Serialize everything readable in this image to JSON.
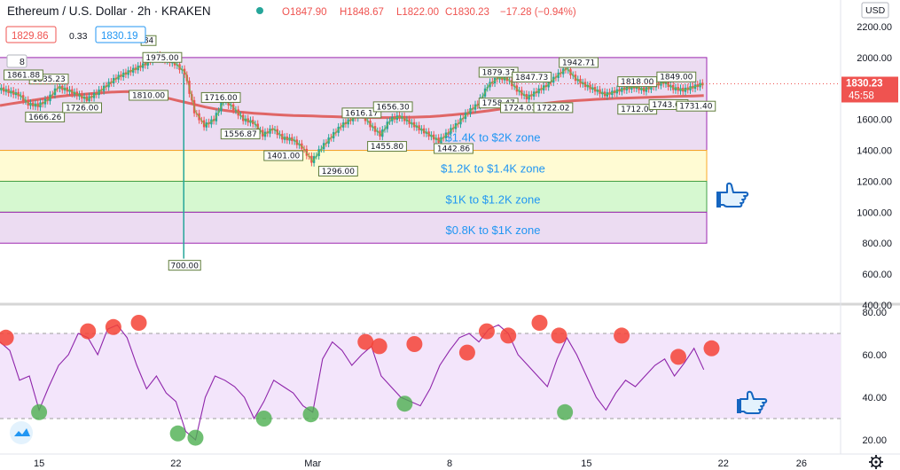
{
  "header": {
    "symbol": "Ethereum / U.S. Dollar · 2h · KRAKEN",
    "open": "O1847.90",
    "high": "H1848.67",
    "low": "L1822.00",
    "close": "C1830.23",
    "change": "−17.28 (−0.94%)",
    "bid": "1829.86",
    "spread": "0.33",
    "ask": "1830.19",
    "currency": "USD",
    "last_price": "1830.23",
    "countdown": "45:58",
    "collapsed_count": "8"
  },
  "colors": {
    "up": "#26a69a",
    "down": "#ef5350",
    "ma": "#e06666",
    "zone_purple": "#e6d0ee",
    "zone_yellow": "#fff9c4",
    "zone_green": "#c8f5c0",
    "rsi_line": "#8e24aa",
    "rsi_band": "#f3e5fb",
    "zone_text": "#2196f3",
    "hand": "#1565c0"
  },
  "icons": {
    "hand_top": "pointing-hand-icon",
    "hand_bottom": "pointing-hand-icon",
    "settings": "gear-icon",
    "logo": "cloud-logo-icon"
  },
  "chart_data": [
    {
      "type": "line",
      "name": "price",
      "y_ticks": [
        "2200.00",
        "2000.00",
        "1800.00",
        "1600.00",
        "1400.00",
        "1200.00",
        "1000.00",
        "800.00",
        "600.00",
        "400.00"
      ],
      "ylim": [
        400,
        2240
      ],
      "x_ticks": [
        "15",
        "22",
        "Mar",
        "8",
        "15",
        "22",
        "26"
      ],
      "x_tick_pos": [
        15,
        22,
        29,
        36,
        43,
        50,
        54
      ],
      "xlim": [
        13,
        56
      ],
      "x_series": [
        13,
        13.5,
        14,
        14.5,
        15,
        15.5,
        16,
        16.5,
        17,
        17.5,
        18,
        18.5,
        19,
        19.5,
        20,
        20.5,
        21,
        21.5,
        22,
        22.5,
        23,
        23.5,
        24,
        24.5,
        25,
        25.5,
        26,
        26.5,
        27,
        27.5,
        28,
        28.5,
        29,
        29.5,
        30,
        30.5,
        31,
        31.5,
        32,
        32.5,
        33,
        33.5,
        34,
        34.5,
        35,
        35.5,
        36,
        36.5,
        37,
        37.5,
        38,
        38.5,
        39,
        39.5,
        40,
        40.5,
        41,
        41.5,
        42,
        42.5,
        43,
        43.5,
        44,
        44.5,
        45,
        45.5,
        46,
        46.5,
        47,
        47.5,
        48,
        48.5,
        49
      ],
      "price": [
        1800,
        1780,
        1760,
        1700,
        1690,
        1730,
        1810,
        1790,
        1760,
        1730,
        1770,
        1820,
        1870,
        1900,
        1930,
        1960,
        2010,
        1990,
        1960,
        1900,
        1650,
        1560,
        1600,
        1730,
        1670,
        1600,
        1580,
        1500,
        1540,
        1480,
        1470,
        1420,
        1330,
        1420,
        1490,
        1560,
        1600,
        1640,
        1560,
        1500,
        1600,
        1620,
        1580,
        1540,
        1500,
        1460,
        1520,
        1580,
        1650,
        1700,
        1820,
        1870,
        1860,
        1790,
        1740,
        1780,
        1820,
        1880,
        1930,
        1860,
        1820,
        1790,
        1760,
        1780,
        1800,
        1810,
        1790,
        1820,
        1840,
        1800,
        1790,
        1810,
        1830.23
      ],
      "ma_line": [
        1690,
        1700,
        1710,
        1720,
        1730,
        1740,
        1748,
        1755,
        1760,
        1765,
        1770,
        1775,
        1778,
        1780,
        1778,
        1770,
        1755,
        1740,
        1725,
        1710,
        1695,
        1680,
        1668,
        1658,
        1650,
        1645,
        1640,
        1636,
        1632,
        1628,
        1625,
        1624,
        1622,
        1620,
        1618,
        1616,
        1615,
        1614,
        1612,
        1612,
        1612,
        1613,
        1614,
        1616,
        1618,
        1622,
        1628,
        1634,
        1640,
        1648,
        1656,
        1665,
        1674,
        1682,
        1690,
        1698,
        1705,
        1712,
        1718,
        1722,
        1726,
        1730,
        1733,
        1736,
        1738,
        1740,
        1742,
        1744,
        1746,
        1748,
        1750,
        1752,
        1754
      ],
      "wick_low": {
        "x": 22.4,
        "value": 700
      },
      "wick_low_label": "700.00",
      "price_labels": [
        {
          "text": "1835.23",
          "x": 15.5,
          "y": 1835
        },
        {
          "text": "1861.88",
          "x": 14.2,
          "y": 1862
        },
        {
          "text": "84",
          "x": 20.6,
          "y": 2084
        },
        {
          "text": "1975.00",
          "x": 21.3,
          "y": 1975
        },
        {
          "text": "1810.00",
          "x": 20.6,
          "y": 1730
        },
        {
          "text": "1716.00",
          "x": 24.3,
          "y": 1716
        },
        {
          "text": "1666.26",
          "x": 15.3,
          "y": 1590
        },
        {
          "text": "1726.00",
          "x": 17.2,
          "y": 1650
        },
        {
          "text": "1556.87",
          "x": 25.3,
          "y": 1480
        },
        {
          "text": "1401.00",
          "x": 27.5,
          "y": 1340
        },
        {
          "text": "1296.00",
          "x": 30.3,
          "y": 1240
        },
        {
          "text": "1616.17",
          "x": 31.5,
          "y": 1616
        },
        {
          "text": "1656.30",
          "x": 33.1,
          "y": 1656
        },
        {
          "text": "1455.80",
          "x": 32.8,
          "y": 1400
        },
        {
          "text": "1442.86",
          "x": 36.2,
          "y": 1386
        },
        {
          "text": "1879.37",
          "x": 38.5,
          "y": 1879
        },
        {
          "text": "1847.73",
          "x": 40.2,
          "y": 1848
        },
        {
          "text": "1758.47",
          "x": 38.5,
          "y": 1680
        },
        {
          "text": "1724.03",
          "x": 39.6,
          "y": 1650
        },
        {
          "text": "1722.02",
          "x": 41.3,
          "y": 1650
        },
        {
          "text": "1942.71",
          "x": 42.6,
          "y": 1942
        },
        {
          "text": "1818.00",
          "x": 45.6,
          "y": 1818
        },
        {
          "text": "1849.00",
          "x": 47.6,
          "y": 1849
        },
        {
          "text": "1712.00",
          "x": 45.6,
          "y": 1640
        },
        {
          "text": "1743.00",
          "x": 47.2,
          "y": 1670
        },
        {
          "text": "1731.40",
          "x": 48.6,
          "y": 1660
        }
      ],
      "zones": [
        {
          "label": "$1.4K to $2K zone",
          "from": 1400,
          "to": 2000,
          "kind": "purple"
        },
        {
          "label": "$1.2K to $1.4K zone",
          "from": 1200,
          "to": 1400,
          "kind": "yellow"
        },
        {
          "label": "$1K to $1.2K zone",
          "from": 1000,
          "to": 1200,
          "kind": "green"
        },
        {
          "label": "$0.8K to $1K zone",
          "from": 800,
          "to": 1000,
          "kind": "purple"
        }
      ]
    },
    {
      "type": "line",
      "name": "rsi",
      "y_ticks": [
        "80.00",
        "60.00",
        "40.00",
        "20.00"
      ],
      "ylim": [
        15,
        82
      ],
      "band": [
        30,
        70
      ],
      "x_series": [
        13,
        13.5,
        14,
        14.5,
        15,
        15.5,
        16,
        16.5,
        17,
        17.5,
        18,
        18.5,
        19,
        19.5,
        20,
        20.5,
        21,
        21.5,
        22,
        22.5,
        23,
        23.5,
        24,
        24.5,
        25,
        25.5,
        26,
        26.5,
        27,
        27.5,
        28,
        28.5,
        29,
        29.5,
        30,
        30.5,
        31,
        31.5,
        32,
        32.5,
        33,
        33.5,
        34,
        34.5,
        35,
        35.5,
        36,
        36.5,
        37,
        37.5,
        38,
        38.5,
        39,
        39.5,
        40,
        40.5,
        41,
        41.5,
        42,
        42.5,
        43,
        43.5,
        44,
        44.5,
        45,
        45.5,
        46,
        46.5,
        47,
        47.5,
        48,
        48.5,
        49
      ],
      "rsi": [
        66,
        62,
        48,
        50,
        34,
        45,
        55,
        60,
        70,
        68,
        60,
        72,
        74,
        68,
        55,
        44,
        50,
        42,
        38,
        24,
        20,
        40,
        50,
        48,
        45,
        40,
        30,
        38,
        48,
        45,
        42,
        36,
        33,
        58,
        66,
        62,
        55,
        60,
        64,
        50,
        45,
        40,
        38,
        36,
        44,
        55,
        62,
        68,
        70,
        66,
        72,
        74,
        70,
        60,
        55,
        50,
        45,
        58,
        68,
        60,
        50,
        40,
        34,
        42,
        48,
        45,
        50,
        55,
        58,
        50,
        56,
        63,
        53
      ],
      "overbought_marks": [
        {
          "x": 13.3,
          "y": 68
        },
        {
          "x": 17.5,
          "y": 71
        },
        {
          "x": 18.8,
          "y": 73
        },
        {
          "x": 20.1,
          "y": 75
        },
        {
          "x": 31.7,
          "y": 66
        },
        {
          "x": 32.4,
          "y": 64
        },
        {
          "x": 34.2,
          "y": 65
        },
        {
          "x": 36.9,
          "y": 61
        },
        {
          "x": 37.9,
          "y": 71
        },
        {
          "x": 39.0,
          "y": 69
        },
        {
          "x": 40.6,
          "y": 75
        },
        {
          "x": 41.6,
          "y": 69
        },
        {
          "x": 44.8,
          "y": 69
        },
        {
          "x": 47.7,
          "y": 59
        },
        {
          "x": 49.4,
          "y": 63
        }
      ],
      "oversold_marks": [
        {
          "x": 15.0,
          "y": 33
        },
        {
          "x": 22.1,
          "y": 23
        },
        {
          "x": 23.0,
          "y": 21
        },
        {
          "x": 26.5,
          "y": 30
        },
        {
          "x": 28.9,
          "y": 32
        },
        {
          "x": 33.7,
          "y": 37
        },
        {
          "x": 41.9,
          "y": 33
        }
      ]
    }
  ]
}
